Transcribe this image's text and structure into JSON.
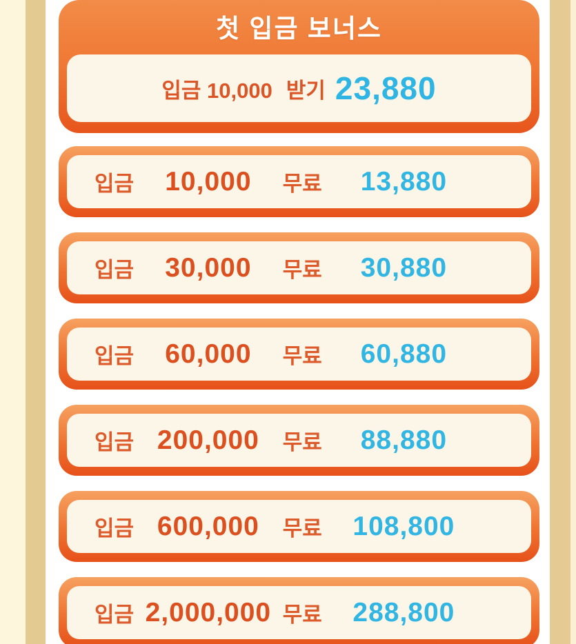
{
  "theme": {
    "gradient_top_orange": "#f6a160",
    "gradient_bottom_orange": "#e65119",
    "card_inner_bg": "#fcf6e8",
    "label_orange": "#dd5b2a",
    "amount_orange": "#dc4f1f",
    "bonus_cyan": "#31b5e2",
    "side_cream": "#fdf5dc",
    "side_tan": "#e3ca90"
  },
  "hero": {
    "title": "첫 입금 보너스",
    "deposit_line": "입금 10,000",
    "action_label": "받기",
    "bonus_value": "23,880"
  },
  "tiers": {
    "deposit_label": "입금",
    "free_label": "무료",
    "rows": [
      {
        "deposit": "10,000",
        "bonus": "13,880"
      },
      {
        "deposit": "30,000",
        "bonus": "30,880"
      },
      {
        "deposit": "60,000",
        "bonus": "60,880"
      },
      {
        "deposit": "200,000",
        "bonus": "88,880"
      },
      {
        "deposit": "600,000",
        "bonus": "108,800"
      },
      {
        "deposit": "2,000,000",
        "bonus": "288,800"
      }
    ]
  }
}
